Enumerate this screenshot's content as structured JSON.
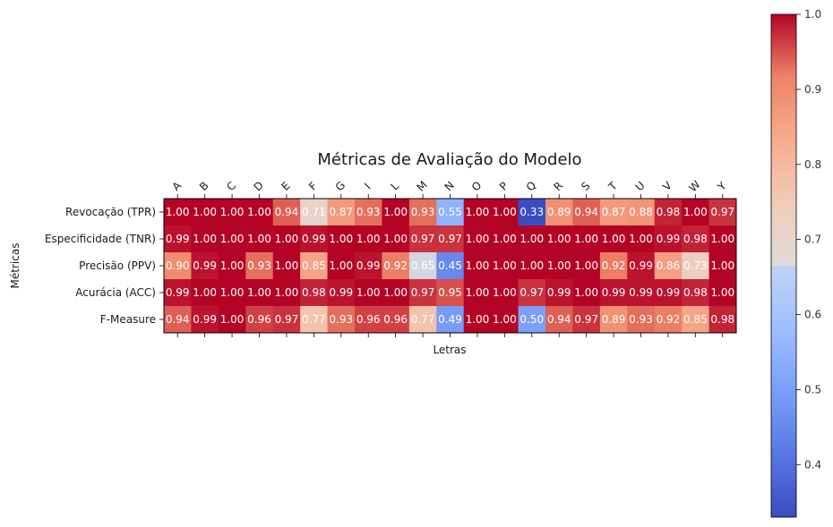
{
  "chart_data": {
    "type": "heatmap",
    "title": "Métricas de Avaliação do Modelo",
    "xlabel": "Letras",
    "ylabel": "Métricas",
    "x_categories": [
      "A",
      "B",
      "C",
      "D",
      "E",
      "F",
      "G",
      "I",
      "L",
      "M",
      "N",
      "O",
      "P",
      "Q",
      "R",
      "S",
      "T",
      "U",
      "V",
      "W",
      "Y"
    ],
    "y_categories": [
      "Revocação (TPR)",
      "Especificidade (TNR)",
      "Precisão (PPV)",
      "Acurácia (ACC)",
      "F-Measure"
    ],
    "values": [
      [
        1.0,
        1.0,
        1.0,
        1.0,
        0.94,
        0.71,
        0.87,
        0.93,
        1.0,
        0.93,
        0.55,
        1.0,
        1.0,
        0.33,
        0.89,
        0.94,
        0.87,
        0.88,
        0.98,
        1.0,
        0.97
      ],
      [
        0.99,
        1.0,
        1.0,
        1.0,
        1.0,
        0.99,
        1.0,
        1.0,
        1.0,
        0.97,
        0.97,
        1.0,
        1.0,
        1.0,
        1.0,
        1.0,
        1.0,
        1.0,
        0.99,
        0.98,
        1.0
      ],
      [
        0.9,
        0.99,
        1.0,
        0.93,
        1.0,
        0.85,
        1.0,
        0.99,
        0.92,
        0.65,
        0.45,
        1.0,
        1.0,
        1.0,
        1.0,
        1.0,
        0.92,
        0.99,
        0.86,
        0.73,
        1.0
      ],
      [
        0.99,
        1.0,
        1.0,
        1.0,
        1.0,
        0.98,
        0.99,
        1.0,
        1.0,
        0.97,
        0.95,
        1.0,
        1.0,
        0.97,
        0.99,
        1.0,
        0.99,
        0.99,
        0.99,
        0.98,
        1.0
      ],
      [
        0.94,
        0.99,
        1.0,
        0.96,
        0.97,
        0.77,
        0.93,
        0.96,
        0.96,
        0.77,
        0.49,
        1.0,
        1.0,
        0.5,
        0.94,
        0.97,
        0.89,
        0.93,
        0.92,
        0.85,
        0.98
      ]
    ],
    "cell_label_format": "0.00",
    "colormap": "coolwarm",
    "colorbar": {
      "min": 0.33,
      "max": 1.0,
      "ticks": [
        "0.4",
        "0.5",
        "0.6",
        "0.7",
        "0.8",
        "0.9",
        "1.0"
      ]
    },
    "x_tick_position": "top",
    "x_tick_rotation": 45,
    "grid": false
  }
}
